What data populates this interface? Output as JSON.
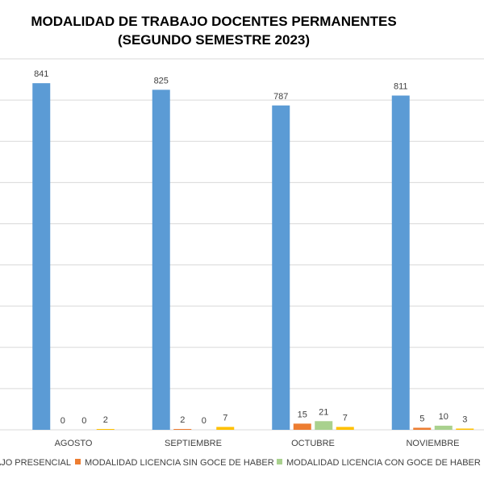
{
  "chart_data": {
    "type": "bar",
    "title": "MODALIDAD DE TRABAJO DOCENTES PERMANENTES",
    "subtitle": "(SEGUNDO SEMESTRE 2023)",
    "categories": [
      "AGOSTO",
      "SEPTIEMBRE",
      "OCTUBRE",
      "NOVIEMBRE"
    ],
    "series": [
      {
        "name": "MODALIDAD DE TRABAJO PRESENCIAL",
        "values": [
          841,
          825,
          787,
          811
        ],
        "color": "#5B9BD5"
      },
      {
        "name": "MODALIDAD LICENCIA SIN GOCE DE HABER",
        "values": [
          0,
          2,
          15,
          5
        ],
        "color": "#ED7D31"
      },
      {
        "name": "MODALIDAD LICENCIA CON GOCE DE HABER",
        "values": [
          0,
          0,
          21,
          10
        ],
        "color": "#A9D18E"
      },
      {
        "name": "",
        "values": [
          2,
          7,
          7,
          3
        ],
        "color": "#FFC000"
      }
    ],
    "ylim": [
      0,
      900
    ],
    "gridlines": true,
    "legend_position": "bottom"
  }
}
